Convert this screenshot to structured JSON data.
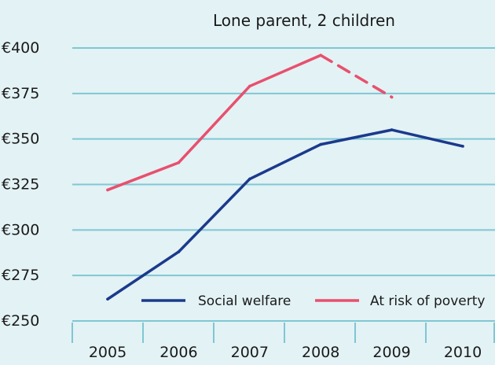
{
  "chart_data": {
    "type": "line",
    "title": "Lone parent, 2 children",
    "xlabel": "",
    "ylabel": "",
    "categories": [
      "2005",
      "2006",
      "2007",
      "2008",
      "2009",
      "2010"
    ],
    "y_ticks": [
      "€400",
      "€375",
      "€350",
      "€325",
      "€300",
      "€275",
      "€250"
    ],
    "ylim": [
      250,
      400
    ],
    "grid": true,
    "legend_position": "bottom-right",
    "series": [
      {
        "name": "Social welfare",
        "color": "#1b3a8c",
        "style": "solid",
        "values": [
          262,
          288,
          328,
          347,
          355,
          346
        ]
      },
      {
        "name": "At risk of poverty",
        "color": "#e8506e",
        "style": "solid, dashed 2008–2009",
        "values": [
          322,
          337,
          379,
          396,
          373,
          null
        ]
      }
    ]
  }
}
